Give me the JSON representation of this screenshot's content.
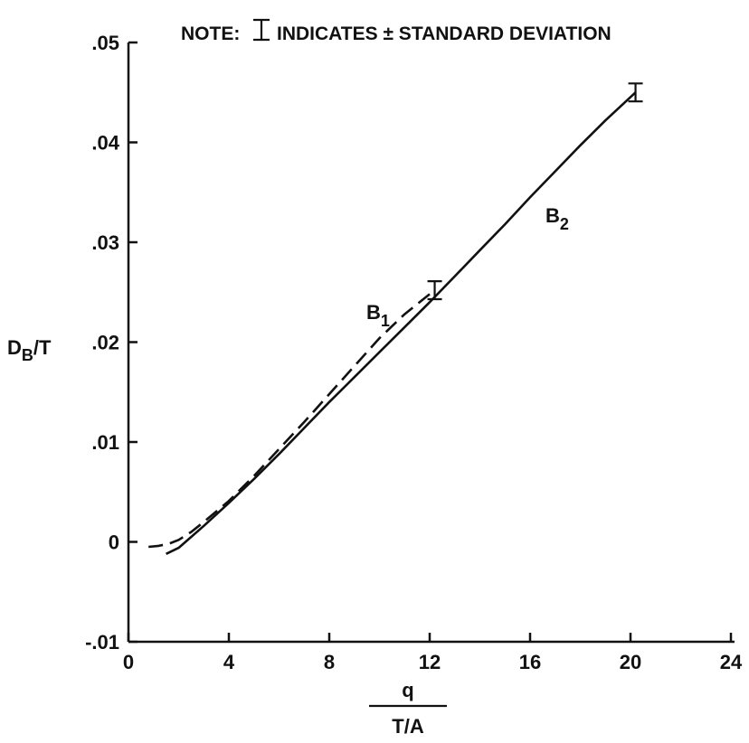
{
  "note": {
    "prefix": "NOTE:",
    "icon": "error-bar-icon",
    "text": "INDICATES ± STANDARD DEVIATION"
  },
  "chart_data": {
    "type": "line",
    "ylabel": {
      "main": "D",
      "sub": "B",
      "suffix": "/T"
    },
    "xlabel": {
      "numerator": "q",
      "denominator": "T/A"
    },
    "xlim": [
      0,
      24
    ],
    "ylim": [
      -0.01,
      0.05
    ],
    "x_ticks": [
      0,
      4,
      8,
      12,
      16,
      20,
      24
    ],
    "x_tick_labels": [
      "0",
      "4",
      "8",
      "12",
      "16",
      "20",
      "24"
    ],
    "y_ticks": [
      -0.01,
      0,
      0.01,
      0.02,
      0.03,
      0.04,
      0.05
    ],
    "y_tick_labels": [
      "-.01",
      "0",
      ".01",
      ".02",
      ".03",
      ".04",
      ".05"
    ],
    "grid": false,
    "color": "#111111",
    "series": [
      {
        "name": "B1",
        "label_main": "B",
        "label_sub": "1",
        "style": "dashed",
        "x": [
          0.8,
          1.2,
          1.6,
          2.0,
          2.5,
          3.0,
          4.0,
          5.0,
          6.0,
          7.0,
          8.0,
          9.0,
          10.0,
          11.0,
          12.2
        ],
        "y": [
          -0.0005,
          -0.0004,
          -0.0002,
          0.0002,
          0.001,
          0.002,
          0.0041,
          0.0066,
          0.0093,
          0.012,
          0.0148,
          0.0176,
          0.0204,
          0.0228,
          0.0252
        ],
        "error_bar": {
          "x": 12.2,
          "y": 0.0252,
          "std": 0.0009
        }
      },
      {
        "name": "B2",
        "label_main": "B",
        "label_sub": "2",
        "style": "solid",
        "x": [
          1.5,
          2.0,
          3.0,
          4.0,
          5.0,
          6.0,
          7.0,
          8.0,
          9.0,
          10.0,
          11.0,
          12.0,
          13.0,
          14.0,
          15.0,
          16.0,
          17.0,
          18.0,
          19.0,
          20.2
        ],
        "y": [
          -0.0012,
          -0.0006,
          0.0016,
          0.0039,
          0.0063,
          0.0088,
          0.0114,
          0.014,
          0.0165,
          0.019,
          0.0215,
          0.024,
          0.0266,
          0.0292,
          0.0318,
          0.0345,
          0.0371,
          0.0397,
          0.0422,
          0.045
        ],
        "error_bar": {
          "x": 20.2,
          "y": 0.045,
          "std": 0.0009
        }
      }
    ]
  }
}
